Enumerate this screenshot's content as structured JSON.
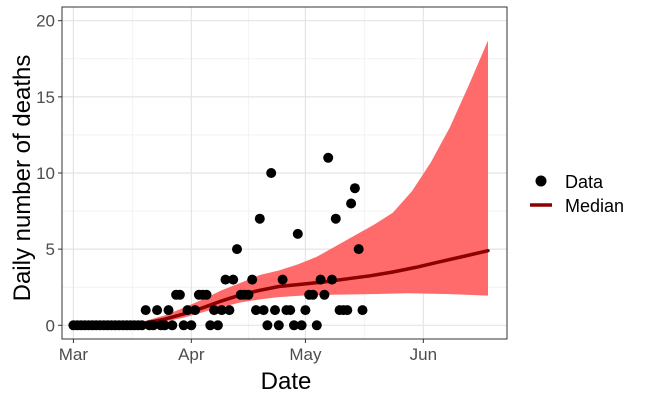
{
  "chart_data": {
    "type": "scatter",
    "title": "",
    "xlabel": "Date",
    "ylabel": "Daily number of deaths",
    "x_axis_type": "date",
    "xlim": [
      "2020-02-27",
      "2020-06-23"
    ],
    "ylim": [
      -0.9,
      20.9
    ],
    "x_ticks": [
      {
        "date": "2020-03-01",
        "label": "Mar"
      },
      {
        "date": "2020-04-01",
        "label": "Apr"
      },
      {
        "date": "2020-05-01",
        "label": "May"
      },
      {
        "date": "2020-06-01",
        "label": "Jun"
      }
    ],
    "y_ticks": [
      0,
      5,
      10,
      15,
      20
    ],
    "grid": true,
    "legend": {
      "placement": "right",
      "entries": [
        {
          "label": "Data",
          "symbol": "point"
        },
        {
          "label": "Median",
          "symbol": "line"
        }
      ]
    },
    "colors": {
      "points": "#000000",
      "median": "#8b0000",
      "band": "#ff6b6b",
      "grid_major": "#e4e4e4",
      "grid_minor": "#f2f2f2",
      "panel_border": "#333333"
    },
    "series": [
      {
        "name": "Data",
        "type": "scatter",
        "points": [
          {
            "x": "2020-03-01",
            "y": 0
          },
          {
            "x": "2020-03-02",
            "y": 0
          },
          {
            "x": "2020-03-03",
            "y": 0
          },
          {
            "x": "2020-03-04",
            "y": 0
          },
          {
            "x": "2020-03-05",
            "y": 0
          },
          {
            "x": "2020-03-06",
            "y": 0
          },
          {
            "x": "2020-03-07",
            "y": 0
          },
          {
            "x": "2020-03-08",
            "y": 0
          },
          {
            "x": "2020-03-09",
            "y": 0
          },
          {
            "x": "2020-03-10",
            "y": 0
          },
          {
            "x": "2020-03-11",
            "y": 0
          },
          {
            "x": "2020-03-12",
            "y": 0
          },
          {
            "x": "2020-03-13",
            "y": 0
          },
          {
            "x": "2020-03-14",
            "y": 0
          },
          {
            "x": "2020-03-15",
            "y": 0
          },
          {
            "x": "2020-03-16",
            "y": 0
          },
          {
            "x": "2020-03-17",
            "y": 0
          },
          {
            "x": "2020-03-18",
            "y": 0
          },
          {
            "x": "2020-03-19",
            "y": 0
          },
          {
            "x": "2020-03-20",
            "y": 1
          },
          {
            "x": "2020-03-21",
            "y": 0
          },
          {
            "x": "2020-03-22",
            "y": 0
          },
          {
            "x": "2020-03-23",
            "y": 1
          },
          {
            "x": "2020-03-24",
            "y": 0
          },
          {
            "x": "2020-03-25",
            "y": 0
          },
          {
            "x": "2020-03-26",
            "y": 1
          },
          {
            "x": "2020-03-27",
            "y": 0
          },
          {
            "x": "2020-03-28",
            "y": 2
          },
          {
            "x": "2020-03-29",
            "y": 2
          },
          {
            "x": "2020-03-30",
            "y": 0
          },
          {
            "x": "2020-03-31",
            "y": 1
          },
          {
            "x": "2020-04-01",
            "y": 0
          },
          {
            "x": "2020-04-02",
            "y": 1
          },
          {
            "x": "2020-04-03",
            "y": 2
          },
          {
            "x": "2020-04-04",
            "y": 2
          },
          {
            "x": "2020-04-05",
            "y": 2
          },
          {
            "x": "2020-04-06",
            "y": 0
          },
          {
            "x": "2020-04-07",
            "y": 1
          },
          {
            "x": "2020-04-08",
            "y": 0
          },
          {
            "x": "2020-04-09",
            "y": 1
          },
          {
            "x": "2020-04-10",
            "y": 3
          },
          {
            "x": "2020-04-11",
            "y": 1
          },
          {
            "x": "2020-04-12",
            "y": 3
          },
          {
            "x": "2020-04-13",
            "y": 5
          },
          {
            "x": "2020-04-14",
            "y": 2
          },
          {
            "x": "2020-04-15",
            "y": 2
          },
          {
            "x": "2020-04-16",
            "y": 2
          },
          {
            "x": "2020-04-17",
            "y": 3
          },
          {
            "x": "2020-04-18",
            "y": 1
          },
          {
            "x": "2020-04-19",
            "y": 7
          },
          {
            "x": "2020-04-20",
            "y": 1
          },
          {
            "x": "2020-04-21",
            "y": 0
          },
          {
            "x": "2020-04-22",
            "y": 10
          },
          {
            "x": "2020-04-23",
            "y": 1
          },
          {
            "x": "2020-04-24",
            "y": 0
          },
          {
            "x": "2020-04-25",
            "y": 3
          },
          {
            "x": "2020-04-26",
            "y": 1
          },
          {
            "x": "2020-04-27",
            "y": 1
          },
          {
            "x": "2020-04-28",
            "y": 0
          },
          {
            "x": "2020-04-29",
            "y": 6
          },
          {
            "x": "2020-04-30",
            "y": 0
          },
          {
            "x": "2020-05-01",
            "y": 1
          },
          {
            "x": "2020-05-02",
            "y": 2
          },
          {
            "x": "2020-05-03",
            "y": 2
          },
          {
            "x": "2020-05-04",
            "y": 0
          },
          {
            "x": "2020-05-05",
            "y": 3
          },
          {
            "x": "2020-05-06",
            "y": 2
          },
          {
            "x": "2020-05-07",
            "y": 11
          },
          {
            "x": "2020-05-08",
            "y": 3
          },
          {
            "x": "2020-05-09",
            "y": 7
          },
          {
            "x": "2020-05-10",
            "y": 1
          },
          {
            "x": "2020-05-11",
            "y": 1
          },
          {
            "x": "2020-05-12",
            "y": 1
          },
          {
            "x": "2020-05-13",
            "y": 8
          },
          {
            "x": "2020-05-14",
            "y": 9
          },
          {
            "x": "2020-05-15",
            "y": 5
          },
          {
            "x": "2020-05-16",
            "y": 1
          }
        ]
      },
      {
        "name": "Median",
        "type": "line",
        "points": [
          {
            "x": "2020-03-01",
            "y": 0
          },
          {
            "x": "2020-03-10",
            "y": 0.02
          },
          {
            "x": "2020-03-15",
            "y": 0.05
          },
          {
            "x": "2020-03-20",
            "y": 0.15
          },
          {
            "x": "2020-03-25",
            "y": 0.4
          },
          {
            "x": "2020-03-30",
            "y": 0.75
          },
          {
            "x": "2020-04-04",
            "y": 1.15
          },
          {
            "x": "2020-04-09",
            "y": 1.6
          },
          {
            "x": "2020-04-14",
            "y": 2.0
          },
          {
            "x": "2020-04-19",
            "y": 2.3
          },
          {
            "x": "2020-04-24",
            "y": 2.55
          },
          {
            "x": "2020-04-30",
            "y": 2.7
          },
          {
            "x": "2020-05-06",
            "y": 2.85
          },
          {
            "x": "2020-05-12",
            "y": 3.05
          },
          {
            "x": "2020-05-18",
            "y": 3.25
          },
          {
            "x": "2020-05-24",
            "y": 3.5
          },
          {
            "x": "2020-05-30",
            "y": 3.8
          },
          {
            "x": "2020-06-05",
            "y": 4.15
          },
          {
            "x": "2020-06-12",
            "y": 4.55
          },
          {
            "x": "2020-06-18",
            "y": 4.9
          }
        ]
      }
    ],
    "band": {
      "upper": [
        {
          "x": "2020-03-01",
          "y": 0
        },
        {
          "x": "2020-03-10",
          "y": 0.05
        },
        {
          "x": "2020-03-15",
          "y": 0.1
        },
        {
          "x": "2020-03-20",
          "y": 0.3
        },
        {
          "x": "2020-03-25",
          "y": 0.65
        },
        {
          "x": "2020-03-30",
          "y": 1.15
        },
        {
          "x": "2020-04-04",
          "y": 1.7
        },
        {
          "x": "2020-04-09",
          "y": 2.3
        },
        {
          "x": "2020-04-14",
          "y": 2.8
        },
        {
          "x": "2020-04-19",
          "y": 3.3
        },
        {
          "x": "2020-04-24",
          "y": 3.6
        },
        {
          "x": "2020-04-29",
          "y": 4.0
        },
        {
          "x": "2020-05-04",
          "y": 4.5
        },
        {
          "x": "2020-05-09",
          "y": 5.2
        },
        {
          "x": "2020-05-14",
          "y": 5.9
        },
        {
          "x": "2020-05-19",
          "y": 6.6
        },
        {
          "x": "2020-05-24",
          "y": 7.4
        },
        {
          "x": "2020-05-29",
          "y": 8.8
        },
        {
          "x": "2020-06-03",
          "y": 10.7
        },
        {
          "x": "2020-06-08",
          "y": 13.0
        },
        {
          "x": "2020-06-13",
          "y": 15.8
        },
        {
          "x": "2020-06-18",
          "y": 18.7
        }
      ],
      "lower": [
        {
          "x": "2020-03-01",
          "y": 0
        },
        {
          "x": "2020-03-10",
          "y": 0
        },
        {
          "x": "2020-03-15",
          "y": 0.02
        },
        {
          "x": "2020-03-20",
          "y": 0.08
        },
        {
          "x": "2020-03-25",
          "y": 0.25
        },
        {
          "x": "2020-03-30",
          "y": 0.5
        },
        {
          "x": "2020-04-04",
          "y": 0.85
        },
        {
          "x": "2020-04-09",
          "y": 1.2
        },
        {
          "x": "2020-04-14",
          "y": 1.5
        },
        {
          "x": "2020-04-19",
          "y": 1.7
        },
        {
          "x": "2020-04-24",
          "y": 1.85
        },
        {
          "x": "2020-04-30",
          "y": 1.95
        },
        {
          "x": "2020-05-08",
          "y": 2.0
        },
        {
          "x": "2020-05-18",
          "y": 2.05
        },
        {
          "x": "2020-05-28",
          "y": 2.1
        },
        {
          "x": "2020-06-08",
          "y": 2.05
        },
        {
          "x": "2020-06-18",
          "y": 1.95
        }
      ]
    }
  }
}
